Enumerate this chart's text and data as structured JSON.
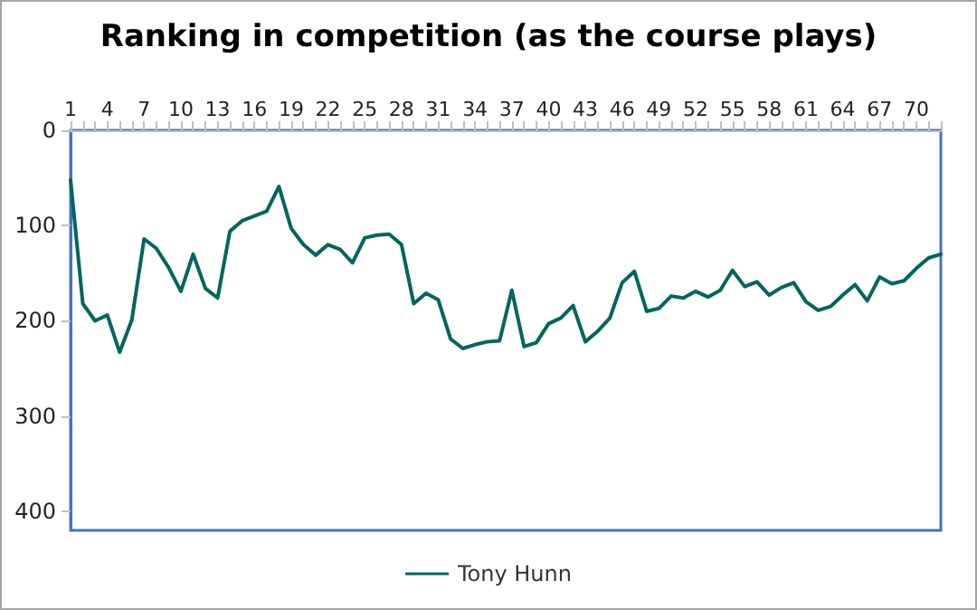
{
  "chart_data": {
    "type": "line",
    "title": "Ranking in competition (as the course plays)",
    "categories": [
      "1",
      null,
      null,
      "4",
      null,
      null,
      "7",
      null,
      null,
      "10",
      null,
      null,
      "13",
      null,
      null,
      "16",
      null,
      null,
      "19",
      null,
      null,
      "22",
      null,
      null,
      "25",
      null,
      null,
      "28",
      null,
      null,
      "31",
      null,
      null,
      "34",
      null,
      null,
      "37",
      null,
      null,
      "40",
      null,
      null,
      "43",
      null,
      null,
      "46",
      null,
      null,
      "49",
      null,
      null,
      "52",
      null,
      null,
      "55",
      null,
      null,
      "58",
      null,
      null,
      "61",
      null,
      null,
      "64",
      null,
      null,
      "67",
      null,
      null,
      "70",
      null,
      null
    ],
    "series": [
      {
        "name": "Tony Hunn",
        "color": "#00665e",
        "values": [
          52,
          182,
          200,
          194,
          233,
          199,
          114,
          124,
          144,
          169,
          130,
          166,
          176,
          106,
          95,
          90,
          85,
          59,
          103,
          120,
          131,
          120,
          125,
          139,
          113,
          110,
          109,
          120,
          182,
          171,
          178,
          219,
          229,
          225,
          222,
          221,
          168,
          227,
          223,
          203,
          197,
          184,
          222,
          211,
          197,
          160,
          148,
          190,
          187,
          174,
          176,
          169,
          175,
          168,
          147,
          164,
          159,
          173,
          165,
          160,
          180,
          189,
          185,
          173,
          162,
          179,
          154,
          161,
          158,
          145,
          134,
          130
        ]
      }
    ],
    "ylim": [
      420,
      0
    ],
    "yticks": [
      0,
      100,
      200,
      300,
      400
    ],
    "legend": "bottom",
    "grid": false,
    "marker": "none",
    "line_style": "solid"
  }
}
